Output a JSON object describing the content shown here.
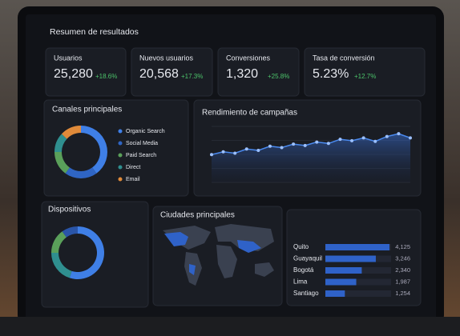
{
  "header": {
    "title": "Resumen de resultados"
  },
  "kpis": [
    {
      "label": "Usuarios",
      "value": "25,280",
      "change": "+18.6%"
    },
    {
      "label": "Nuevos usuarios",
      "value": "20,568",
      "change": "+17.3%"
    },
    {
      "label": "Conversiones",
      "value": "1,320",
      "change": "+25.8%"
    },
    {
      "label": "Tasa de conversión",
      "value": "5.23%",
      "change": "+12.7%"
    }
  ],
  "channels": {
    "title": "Canales principales",
    "categories": [
      "Organic Search",
      "Social Media",
      "Paid Search",
      "Direct",
      "Email"
    ],
    "values": [
      40,
      20,
      15,
      12,
      13
    ],
    "colors": [
      "#3f7fe6",
      "#2f65c4",
      "#5aa05a",
      "#2f8f8f",
      "#e08a3a"
    ]
  },
  "campaigns": {
    "title": "Rendimiento de campañas",
    "values": [
      40,
      44,
      42,
      48,
      46,
      52,
      50,
      55,
      53,
      58,
      56,
      62,
      60,
      64,
      59,
      66,
      70,
      64
    ],
    "color": "#4a8af0"
  },
  "devices": {
    "title": "Dispositivos",
    "values": [
      55,
      20,
      15,
      10
    ],
    "colors": [
      "#3f7fe6",
      "#2f8f8f",
      "#5aa05a",
      "#2a55a8"
    ]
  },
  "map": {
    "title": "Ciudades principales"
  },
  "cities": {
    "categories": [
      "Quito",
      "Guayaquil",
      "Bogotá",
      "Lima",
      "Santiago"
    ],
    "values": [
      4125,
      3246,
      2340,
      1987,
      1254
    ],
    "value_labels": [
      "4,125",
      "3,246",
      "2,340",
      "1,987",
      "1,254"
    ],
    "color": "#2f62c8"
  }
}
